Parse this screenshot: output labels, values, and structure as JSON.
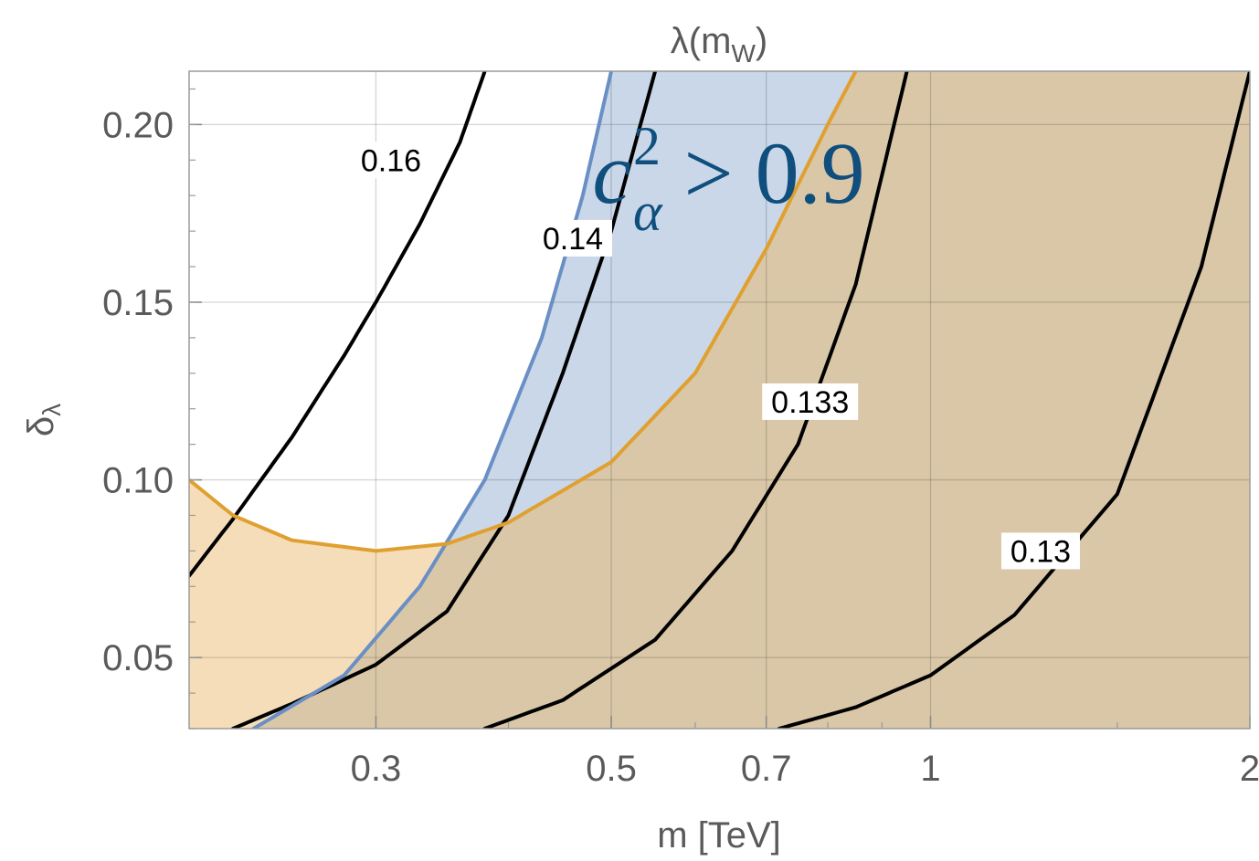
{
  "chart_data": {
    "type": "line",
    "title": "λ(m_W)",
    "title_parts": {
      "main": "λ(m",
      "sub": "W",
      "close": ")"
    },
    "xlabel": "m [TeV]",
    "ylabel_parts": {
      "main": "δ",
      "sub": "λ"
    },
    "x_scale": "log",
    "xlim": [
      0.2,
      2.0
    ],
    "ylim": [
      0.03,
      0.215
    ],
    "x_ticks": [
      {
        "value": 0.3,
        "label": "0.3"
      },
      {
        "value": 0.5,
        "label": "0.5"
      },
      {
        "value": 0.7,
        "label": "0.7"
      },
      {
        "value": 1.0,
        "label": "1"
      },
      {
        "value": 2.0,
        "label": "2"
      }
    ],
    "y_ticks": [
      {
        "value": 0.05,
        "label": "0.05"
      },
      {
        "value": 0.1,
        "label": "0.10"
      },
      {
        "value": 0.15,
        "label": "0.15"
      },
      {
        "value": 0.2,
        "label": "0.20"
      }
    ],
    "grid": true,
    "series": [
      {
        "label": "0.16",
        "color": "#000000",
        "label_at": {
          "x": 0.31,
          "y": 0.19
        },
        "points": [
          [
            0.2,
            0.073
          ],
          [
            0.22,
            0.089
          ],
          [
            0.25,
            0.112
          ],
          [
            0.28,
            0.135
          ],
          [
            0.3,
            0.15
          ],
          [
            0.33,
            0.172
          ],
          [
            0.36,
            0.195
          ],
          [
            0.38,
            0.215
          ]
        ]
      },
      {
        "label": "0.14",
        "color": "#000000",
        "label_at": {
          "x": 0.46,
          "y": 0.168
        },
        "points": [
          [
            0.22,
            0.03
          ],
          [
            0.25,
            0.037
          ],
          [
            0.3,
            0.048
          ],
          [
            0.35,
            0.063
          ],
          [
            0.4,
            0.09
          ],
          [
            0.45,
            0.13
          ],
          [
            0.5,
            0.17
          ],
          [
            0.55,
            0.215
          ]
        ]
      },
      {
        "label": "0.133",
        "color": "#000000",
        "label_at": {
          "x": 0.77,
          "y": 0.122
        },
        "points": [
          [
            0.38,
            0.03
          ],
          [
            0.45,
            0.038
          ],
          [
            0.55,
            0.055
          ],
          [
            0.65,
            0.08
          ],
          [
            0.75,
            0.11
          ],
          [
            0.85,
            0.155
          ],
          [
            0.95,
            0.215
          ]
        ]
      },
      {
        "label": "0.13",
        "color": "#000000",
        "label_at": {
          "x": 1.27,
          "y": 0.08
        },
        "points": [
          [
            0.72,
            0.03
          ],
          [
            0.85,
            0.036
          ],
          [
            1.0,
            0.045
          ],
          [
            1.2,
            0.062
          ],
          [
            1.5,
            0.096
          ],
          [
            1.8,
            0.16
          ],
          [
            2.0,
            0.215
          ]
        ]
      },
      {
        "name": "blue boundary",
        "color": "#6a8fc4",
        "points": [
          [
            0.23,
            0.03
          ],
          [
            0.28,
            0.045
          ],
          [
            0.33,
            0.07
          ],
          [
            0.38,
            0.1
          ],
          [
            0.43,
            0.14
          ],
          [
            0.47,
            0.18
          ],
          [
            0.5,
            0.215
          ]
        ]
      },
      {
        "name": "orange boundary",
        "color": "#e0a030",
        "points": [
          [
            0.2,
            0.1
          ],
          [
            0.22,
            0.09
          ],
          [
            0.25,
            0.083
          ],
          [
            0.3,
            0.08
          ],
          [
            0.35,
            0.082
          ],
          [
            0.4,
            0.088
          ],
          [
            0.5,
            0.105
          ],
          [
            0.6,
            0.13
          ],
          [
            0.7,
            0.165
          ],
          [
            0.8,
            0.2
          ],
          [
            0.85,
            0.215
          ]
        ]
      }
    ],
    "regions": [
      {
        "name": "orange",
        "color": "#f6ddb9",
        "description_boundary": "below orange boundary"
      },
      {
        "name": "blue",
        "color": "#c9d7e8",
        "description_boundary": "right of blue boundary"
      },
      {
        "name": "overlap",
        "color": "#d9c7a7",
        "description_boundary": "both"
      }
    ],
    "annotation": {
      "base": "c",
      "sub": "α",
      "sup": "2",
      "rest": " > 0.9",
      "color": "#0f4e7d",
      "at": {
        "x": 0.48,
        "y": 0.178
      }
    }
  }
}
